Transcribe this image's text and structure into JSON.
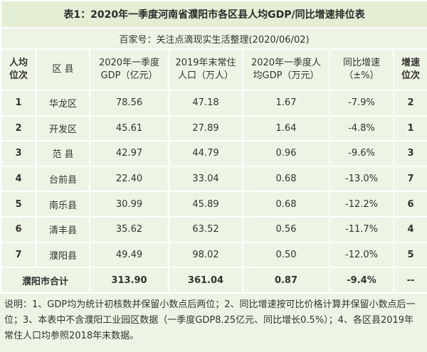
{
  "header": {
    "title": "表1：2020年一季度河南省濮阳市各区县人均GDP/同比增速排位表",
    "source": "百家号：关注点滴现实生活整理(2020/06/02)"
  },
  "table": {
    "columns": [
      [
        "人均",
        "位次"
      ],
      [
        "区 县"
      ],
      [
        "2020年一季度",
        "GDP（亿元）"
      ],
      [
        "2019年末常住",
        "人口（万人）"
      ],
      [
        "2020年一季度人",
        "均GDP（万元）"
      ],
      [
        "同比增速",
        "（±%）"
      ],
      [
        "增速",
        "位次"
      ]
    ],
    "rows": [
      [
        "1",
        "华龙区",
        "78.56",
        "47.18",
        "1.67",
        "-7.9%",
        "2"
      ],
      [
        "2",
        "开发区",
        "45.61",
        "27.89",
        "1.64",
        "-4.8%",
        "1"
      ],
      [
        "3",
        "范 县",
        "42.97",
        "44.79",
        "0.96",
        "-9.6%",
        "3"
      ],
      [
        "4",
        "台前县",
        "22.40",
        "33.04",
        "0.68",
        "-13.0%",
        "7"
      ],
      [
        "5",
        "南乐县",
        "30.99",
        "45.89",
        "0.68",
        "-12.2%",
        "6"
      ],
      [
        "6",
        "清丰县",
        "35.62",
        "63.52",
        "0.56",
        "-11.7%",
        "4"
      ],
      [
        "7",
        "濮阳县",
        "49.49",
        "98.02",
        "0.50",
        "-12.0%",
        "5"
      ]
    ],
    "total": [
      "濮阳市合计",
      "313.90",
      "361.04",
      "0.87",
      "-9.4%",
      "--"
    ]
  },
  "notes": "说明：1、GDP均为统计初核数并保留小数点后两位；2、同比增速按可比价格计算并保留小数点后一位；3、本表中不含濮阳工业园区数据（一季度GDP8.25亿元、同比增长0.5%）；4、各区县2019年常住人口均参照2018年末数据。"
}
